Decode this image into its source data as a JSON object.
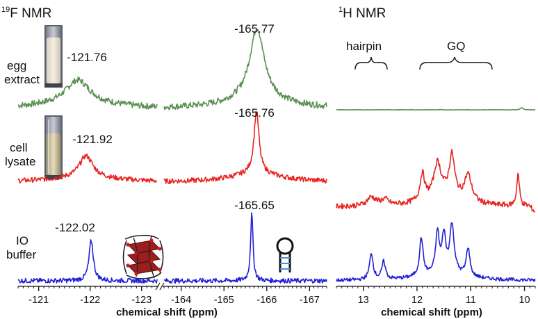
{
  "chart_data": [
    {
      "type": "line",
      "title_prefix": "19",
      "title": "F NMR",
      "xlabel": "chemical shift (ppm)",
      "x_axis_break": true,
      "x_range_left": [
        -120.6,
        -123.3
      ],
      "x_range_right": [
        -163.6,
        -167.4
      ],
      "x_ticks_left": [
        -121,
        -122,
        -123
      ],
      "x_ticks_right": [
        -164,
        -165,
        -166,
        -167
      ],
      "row_labels": {
        "egg": [
          "egg",
          "extract"
        ],
        "cell": [
          "cell",
          "lysate"
        ],
        "io": [
          "IO",
          "buffer"
        ]
      },
      "series": [
        {
          "key": "egg",
          "name": "egg extract",
          "color": "#5a8f52",
          "peaks": [
            {
              "x": -121.76,
              "label": "-121.76"
            },
            {
              "x": -165.77,
              "label": "-165.77"
            }
          ]
        },
        {
          "key": "cell",
          "name": "cell lysate",
          "color": "#e8231e",
          "peaks": [
            {
              "x": -121.92,
              "label": "-121.92"
            },
            {
              "x": -165.76,
              "label": "-165.76"
            }
          ]
        },
        {
          "key": "io",
          "name": "IO buffer",
          "color": "#1f1fd6",
          "peaks": [
            {
              "x": -122.02,
              "label": "-122.02"
            },
            {
              "x": -165.65,
              "label": "-165.65"
            }
          ]
        }
      ]
    },
    {
      "type": "line",
      "title_prefix": "1",
      "title": "H NMR",
      "xlabel": "chemical shift (ppm)",
      "x_range": [
        13.5,
        9.8
      ],
      "x_ticks": [
        13,
        12,
        11,
        10
      ],
      "annotations": [
        {
          "label": "hairpin"
        },
        {
          "label": "GQ"
        }
      ],
      "series": [
        {
          "key": "egg",
          "name": "egg extract",
          "color": "#5a8f52"
        },
        {
          "key": "cell",
          "name": "cell lysate",
          "color": "#e8231e"
        },
        {
          "key": "io",
          "name": "IO buffer",
          "color": "#1f1fd6"
        }
      ]
    }
  ],
  "icons": {
    "egg_tube": "tube-icon",
    "cell_tube": "tube-icon",
    "g_quadruplex": "g-quadruplex-icon",
    "hairpin": "hairpin-icon"
  }
}
